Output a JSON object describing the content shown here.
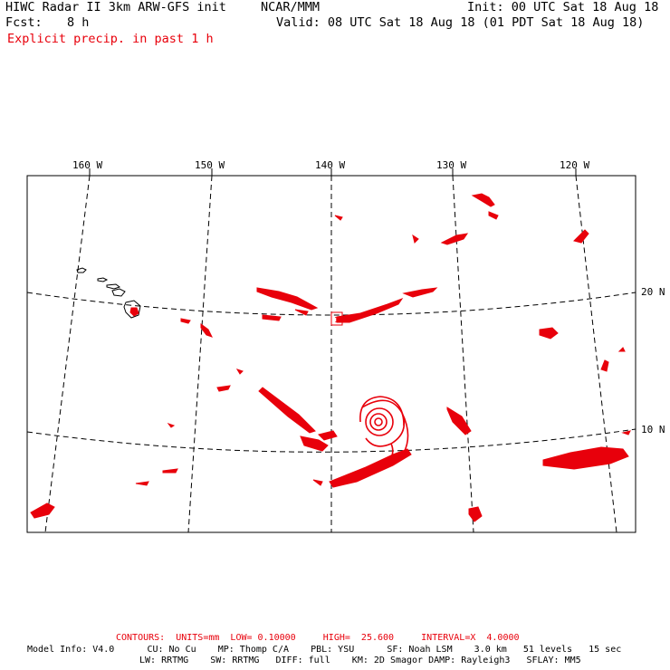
{
  "header": {
    "title": "HIWC Radar II 3km ARW-GFS init",
    "org": "NCAR/MMM",
    "init": "Init: 00 UTC Sat 18 Aug 18",
    "fcst_label": "Fcst:",
    "fcst_value": "8 h",
    "valid": "Valid: 08 UTC Sat 18 Aug 18 (01 PDT Sat 18 Aug 18)",
    "field": "Explicit precip. in past 1 h"
  },
  "map": {
    "lon_labels": [
      "160 W",
      "150 W",
      "140 W",
      "130 W",
      "120 W"
    ],
    "lat_labels": [
      "20 N",
      "10 N"
    ],
    "nest_box_label": "1",
    "precip_color": "#e8000b"
  },
  "footer": {
    "contours": "CONTOURS:  UNITS=mm  LOW= 0.10000     HIGH=  25.600     INTERVAL=X  4.0000",
    "model_line1": "Model Info: V4.0      CU: No Cu    MP: Thomp C/A    PBL: YSU      SF: Noah LSM    3.0 km   51 levels   15 sec",
    "model_line2": "LW: RRTMG    SW: RRTMG   DIFF: full    KM: 2D Smagor DAMP: Rayleigh3   SFLAY: MM5"
  }
}
